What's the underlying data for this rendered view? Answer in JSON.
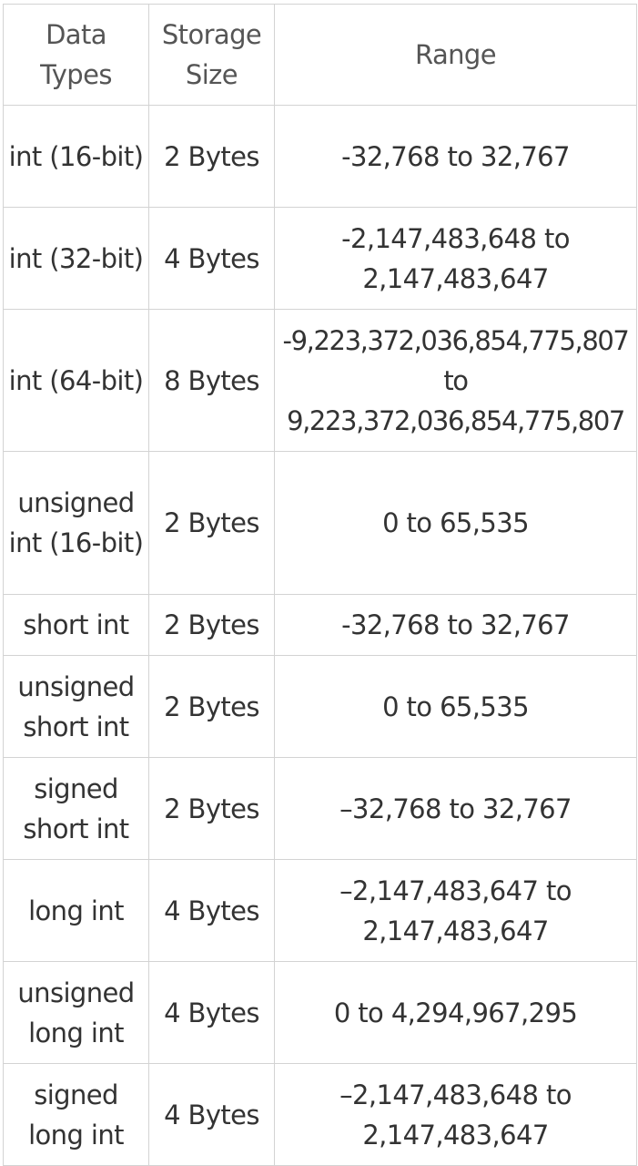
{
  "table": {
    "headers": [
      "Data Types",
      "Storage Size",
      "Range"
    ],
    "rows": [
      {
        "type": "int (16-bit)",
        "size": "2 Bytes",
        "range": "-32,768 to 32,767"
      },
      {
        "type": "int (32-bit)",
        "size": "4 Bytes",
        "range": "-2,147,483,648 to 2,147,483,647"
      },
      {
        "type": "int (64-bit)",
        "size": "8 Bytes",
        "range": "-9,223,372,036,854,775,807 to 9,223,372,036,854,775,807"
      },
      {
        "type": "unsigned int (16-bit)",
        "size": "2 Bytes",
        "range": "0 to 65,535"
      },
      {
        "type": "short int",
        "size": "2 Bytes",
        "range": "-32,768 to 32,767"
      },
      {
        "type": "unsigned short int",
        "size": "2 Bytes",
        "range": "0 to 65,535"
      },
      {
        "type": "signed short int",
        "size": "2 Bytes",
        "range": "–32,768 to 32,767"
      },
      {
        "type": "long int",
        "size": "4 Bytes",
        "range": "–2,147,483,647 to 2,147,483,647"
      },
      {
        "type": "unsigned long int",
        "size": "4 Bytes",
        "range": "0 to 4,294,967,295"
      },
      {
        "type": "signed long int",
        "size": "4 Bytes",
        "range": "–2,147,483,648 to 2,147,483,647"
      }
    ]
  }
}
